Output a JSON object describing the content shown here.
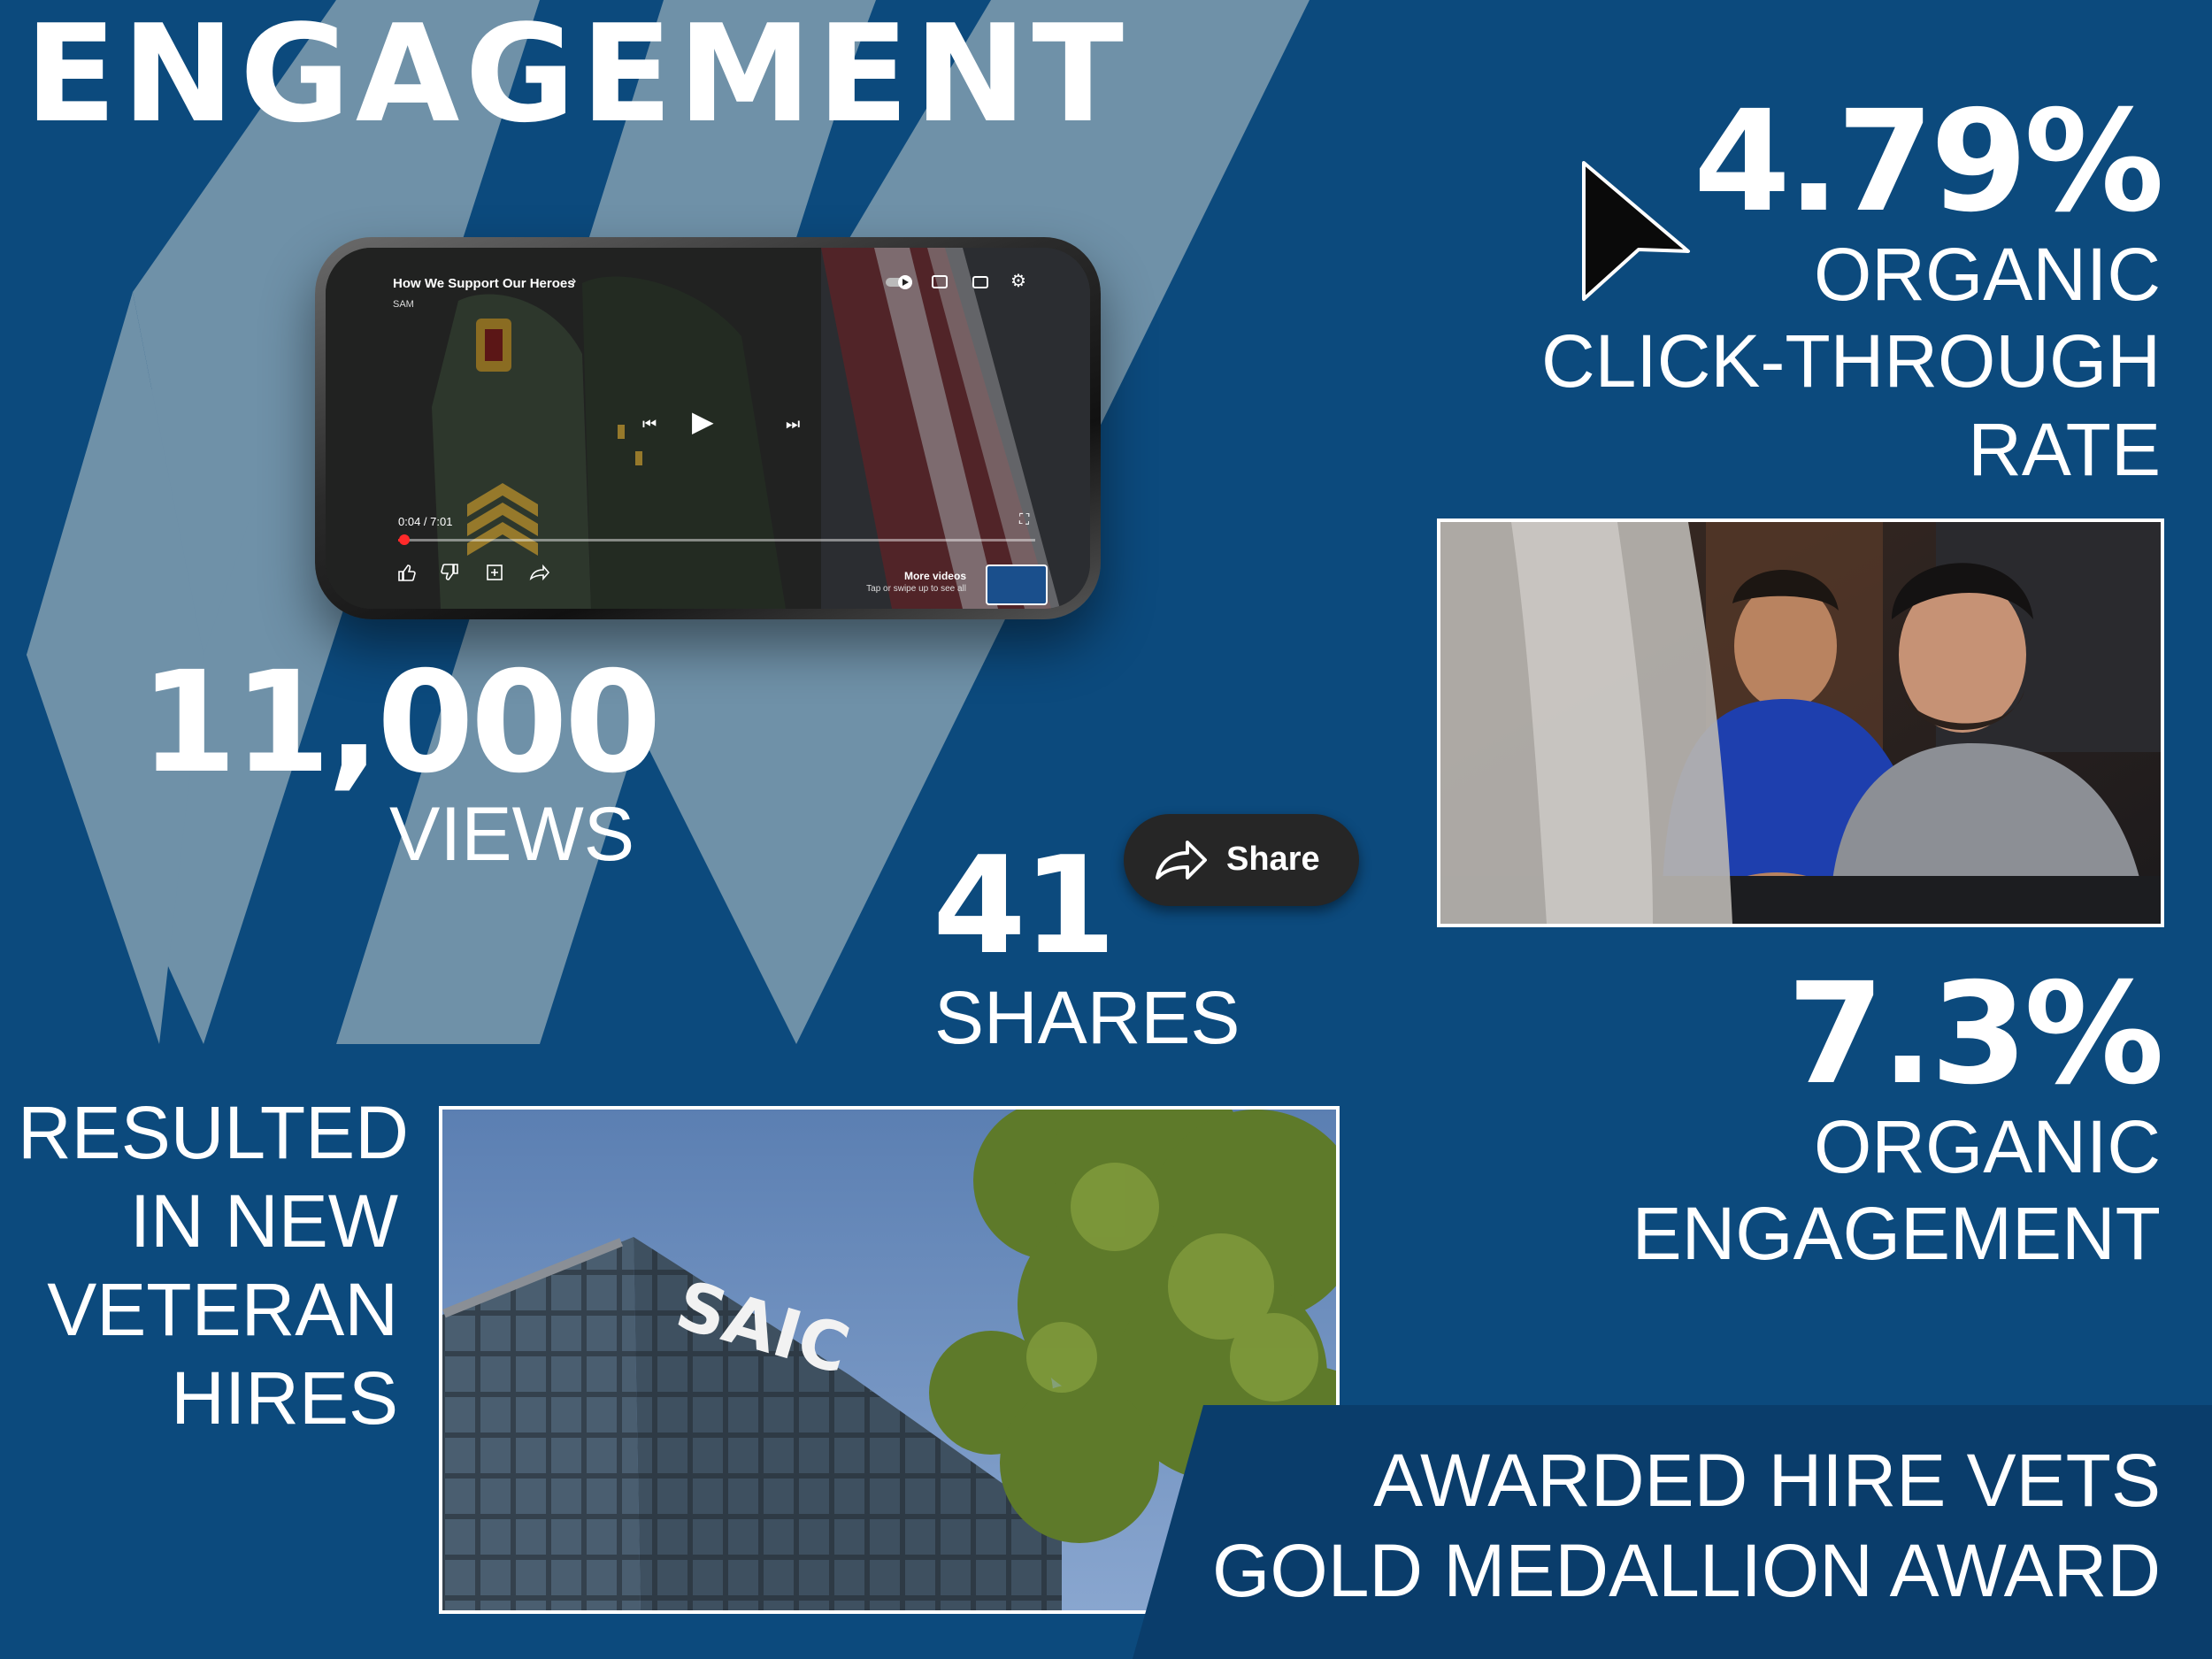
{
  "title": "ENGAGEMENT",
  "colors": {
    "background": "#0c4a7d",
    "stripe": "#6f91a8",
    "text": "#ffffff",
    "banner": "#0a3d6b"
  },
  "phone": {
    "video_title": "How We Support Our Heroes",
    "channel": "SAM",
    "time": "0:04 / 7:01",
    "progress_fraction": 0.01,
    "more_videos": "More videos",
    "more_videos_hint": "Tap or swipe up to see all",
    "icons": [
      "autoplay-toggle-icon",
      "cast-icon",
      "captions-icon",
      "settings-icon",
      "previous-icon",
      "play-icon",
      "next-icon",
      "like-icon",
      "dislike-icon",
      "add-to-playlist-icon",
      "share-arrow-icon",
      "fullscreen-icon"
    ]
  },
  "share_button": {
    "label": "Share",
    "icon": "share-arrow-icon"
  },
  "stats": {
    "views": {
      "value": "11,000",
      "label": "VIEWS"
    },
    "shares": {
      "value": "41",
      "label": "SHARES"
    },
    "ctr": {
      "value": "4.79%",
      "label_lines": [
        "ORGANIC",
        "CLICK-THROUGH",
        "RATE"
      ]
    },
    "engagement": {
      "value": "7.3%",
      "label_lines": [
        "ORGANIC",
        "ENGAGEMENT"
      ]
    }
  },
  "hires": {
    "lines": [
      "RESULTED",
      "IN NEW",
      "VETERAN",
      "HIRES"
    ]
  },
  "award": {
    "lines": [
      "AWARDED HIRE VETS",
      "GOLD MEDALLION AWARD"
    ]
  },
  "building_sign": "SAIC",
  "cursor_icon": "cursor-arrow-icon"
}
